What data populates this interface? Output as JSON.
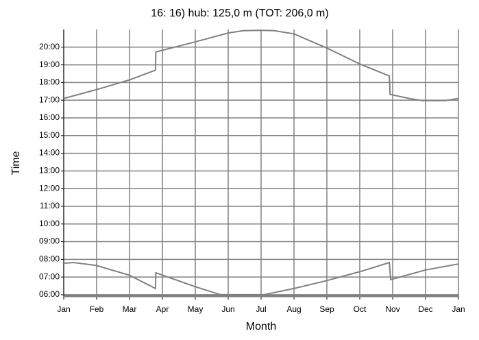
{
  "chart_data": {
    "type": "line",
    "title": "16: 16) hub: 125,0 m (TOT: 206,0 m)",
    "xlabel": "Month",
    "ylabel": "Time",
    "xlim": [
      0,
      12
    ],
    "ylim": [
      5.92,
      21
    ],
    "xticks": [
      {
        "value": 0,
        "label": "Jan"
      },
      {
        "value": 1,
        "label": "Feb"
      },
      {
        "value": 2,
        "label": "Mar"
      },
      {
        "value": 3,
        "label": "Apr"
      },
      {
        "value": 4,
        "label": "May"
      },
      {
        "value": 5,
        "label": "Jun"
      },
      {
        "value": 6,
        "label": "Jul"
      },
      {
        "value": 7,
        "label": "Aug"
      },
      {
        "value": 8,
        "label": "Sep"
      },
      {
        "value": 9,
        "label": "Oct"
      },
      {
        "value": 10,
        "label": "Nov"
      },
      {
        "value": 11,
        "label": "Dec"
      },
      {
        "value": 12,
        "label": "Jan"
      }
    ],
    "yticks": [
      {
        "value": 6,
        "label": "06:00"
      },
      {
        "value": 7,
        "label": "07:00"
      },
      {
        "value": 8,
        "label": "08:00"
      },
      {
        "value": 9,
        "label": "09:00"
      },
      {
        "value": 10,
        "label": "10:00"
      },
      {
        "value": 11,
        "label": "11:00"
      },
      {
        "value": 12,
        "label": "12:00"
      },
      {
        "value": 13,
        "label": "13:00"
      },
      {
        "value": 14,
        "label": "14:00"
      },
      {
        "value": 15,
        "label": "15:00"
      },
      {
        "value": 16,
        "label": "16:00"
      },
      {
        "value": 17,
        "label": "17:00"
      },
      {
        "value": 18,
        "label": "18:00"
      },
      {
        "value": 19,
        "label": "19:00"
      },
      {
        "value": 20,
        "label": "20:00"
      }
    ],
    "grid": true,
    "series": [
      {
        "color": "#808080",
        "x": [
          0,
          1,
          2,
          2.79,
          2.8,
          4,
          5,
          5.46,
          6,
          6.4,
          7,
          8,
          9,
          9.9,
          9.92,
          10.5,
          10.9,
          11.6,
          12
        ],
        "values": [
          17.1,
          17.6,
          18.15,
          18.7,
          19.73,
          20.3,
          20.8,
          20.93,
          20.95,
          20.93,
          20.75,
          19.95,
          19.05,
          18.37,
          17.33,
          17.1,
          16.98,
          16.98,
          17.1
        ]
      },
      {
        "color": "#808080",
        "x": [
          0,
          0.3,
          1,
          2,
          2.79,
          2.8,
          4,
          4.77,
          6.08,
          7,
          8,
          9,
          9.9,
          9.94,
          11,
          12
        ],
        "values": [
          7.78,
          7.82,
          7.65,
          7.1,
          6.35,
          7.24,
          6.45,
          6.0,
          6.0,
          6.35,
          6.8,
          7.3,
          7.82,
          6.85,
          7.4,
          7.74
        ]
      }
    ]
  }
}
